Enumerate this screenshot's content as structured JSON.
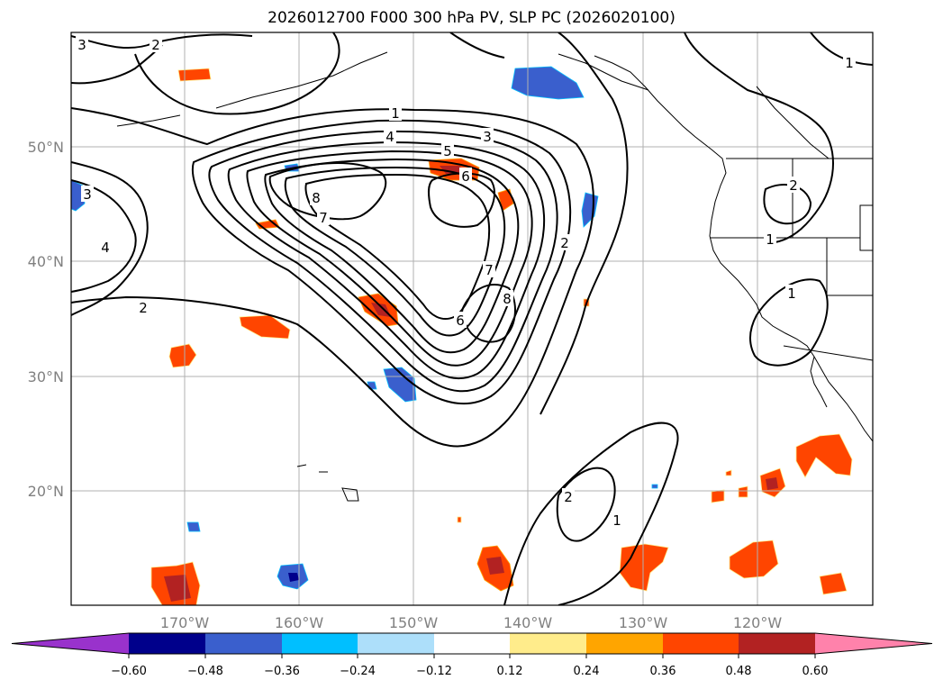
{
  "title": "2026012700 F000 300 hPa PV, SLP PC (2026020100)",
  "map": {
    "lat_labels": [
      "50°N",
      "40°N",
      "30°N",
      "20°N"
    ],
    "lon_labels": [
      "170°W",
      "160°W",
      "150°W",
      "140°W",
      "130°W",
      "120°W"
    ],
    "contour_labels": [
      "3",
      "2",
      "1",
      "4",
      "3",
      "5",
      "6",
      "8",
      "7",
      "7",
      "8",
      "6",
      "2",
      "4",
      "3",
      "2",
      "2",
      "1",
      "1",
      "1",
      "2",
      "1"
    ]
  },
  "colorbar": {
    "ticks": [
      "−0.60",
      "−0.48",
      "−0.36",
      "−0.24",
      "−0.12",
      "0.12",
      "0.24",
      "0.36",
      "0.48",
      "0.60"
    ],
    "colors": [
      "#9932CC",
      "#00008B",
      "#3A5FCD",
      "#00BFFF",
      "#ADDFFA",
      "#FFFFFF",
      "#FFEC8B",
      "#FFA500",
      "#FF4500",
      "#B22222",
      "#FF82AB"
    ]
  }
}
